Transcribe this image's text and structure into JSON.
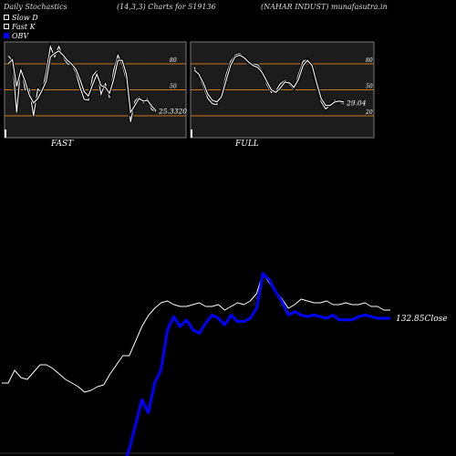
{
  "header": {
    "left": "Daily Stochastics",
    "middle": "(14,3,3) Charts for 519136",
    "right": "(NAHAR INDUST) munafasutra.in"
  },
  "legend": [
    {
      "label": "Slow  D",
      "color": "#ffffff"
    },
    {
      "label": "Fast K",
      "color": "#ffffff"
    },
    {
      "label": "OBV",
      "color": "#0000ff"
    }
  ],
  "chart_data": [
    {
      "type": "line",
      "title": "FAST",
      "ylim": [
        0,
        100
      ],
      "levels": [
        20,
        50,
        80
      ],
      "level_labels": [
        "80",
        "50"
      ],
      "last_value_label": "25.3320",
      "series": [
        {
          "values": [
            89,
            84,
            24,
            77,
            50,
            51,
            20,
            51,
            47,
            71,
            100,
            88,
            100,
            88,
            80,
            79,
            70,
            53,
            39,
            38,
            66,
            72,
            45,
            57,
            41,
            73,
            90,
            79,
            61,
            13,
            37,
            42,
            35,
            40,
            27,
            25
          ]
        },
        {
          "values": [
            80,
            85,
            54,
            73,
            60,
            44,
            35,
            40,
            49,
            60,
            88,
            92,
            95,
            90,
            84,
            80,
            74,
            62,
            48,
            43,
            56,
            68,
            55,
            53,
            46,
            62,
            84,
            84,
            68,
            24,
            32,
            40,
            37,
            38,
            31,
            26
          ]
        }
      ]
    },
    {
      "type": "line",
      "title": "FULL",
      "ylim": [
        0,
        100
      ],
      "levels": [
        20,
        50,
        80
      ],
      "level_labels": [
        "80",
        "50",
        "20"
      ],
      "last_value_label": "29.04",
      "series": [
        {
          "values": [
            76,
            66,
            54,
            40,
            34,
            33,
            45,
            67,
            83,
            90,
            92,
            88,
            80,
            80,
            79,
            72,
            56,
            47,
            49,
            57,
            61,
            56,
            51,
            68,
            83,
            85,
            75,
            54,
            36,
            28,
            32,
            38,
            36,
            34
          ]
        },
        {
          "values": [
            73,
            68,
            58,
            45,
            38,
            36,
            42,
            60,
            78,
            88,
            90,
            87,
            82,
            78,
            76,
            70,
            60,
            50,
            47,
            52,
            59,
            58,
            53,
            62,
            78,
            84,
            78,
            58,
            40,
            32,
            32,
            36,
            37,
            36
          ]
        }
      ]
    },
    {
      "type": "line",
      "title": "",
      "close_label": "132.85Close",
      "series": [
        {
          "name": "Close",
          "color": "#ffffff",
          "values": [
            110,
            110,
            117,
            113,
            112,
            116,
            120,
            120,
            118,
            115,
            112,
            110,
            108,
            105,
            106,
            108,
            109,
            115,
            120,
            125,
            125,
            133,
            141,
            147,
            151,
            154,
            155,
            153,
            152,
            152,
            153,
            154,
            152,
            152,
            153,
            150,
            152,
            154,
            153,
            155,
            159,
            170,
            165,
            160,
            156,
            151,
            153,
            156,
            155,
            154,
            154,
            155,
            153,
            153,
            154,
            153,
            153,
            154,
            152,
            152,
            150,
            150
          ]
        },
        {
          "name": "OBV",
          "color": "#0000ff",
          "values": [
            null,
            null,
            null,
            null,
            null,
            null,
            null,
            null,
            null,
            null,
            null,
            null,
            null,
            null,
            null,
            null,
            null,
            null,
            null,
            60,
            70,
            85,
            100,
            92,
            110,
            118,
            142,
            150,
            144,
            148,
            142,
            140,
            146,
            151,
            149,
            145,
            151,
            147,
            147,
            149,
            155,
            176,
            172,
            165,
            159,
            151,
            153,
            151,
            150,
            151,
            150,
            149,
            151,
            148,
            148,
            148,
            150,
            151,
            150,
            149,
            149,
            149
          ]
        }
      ]
    }
  ]
}
